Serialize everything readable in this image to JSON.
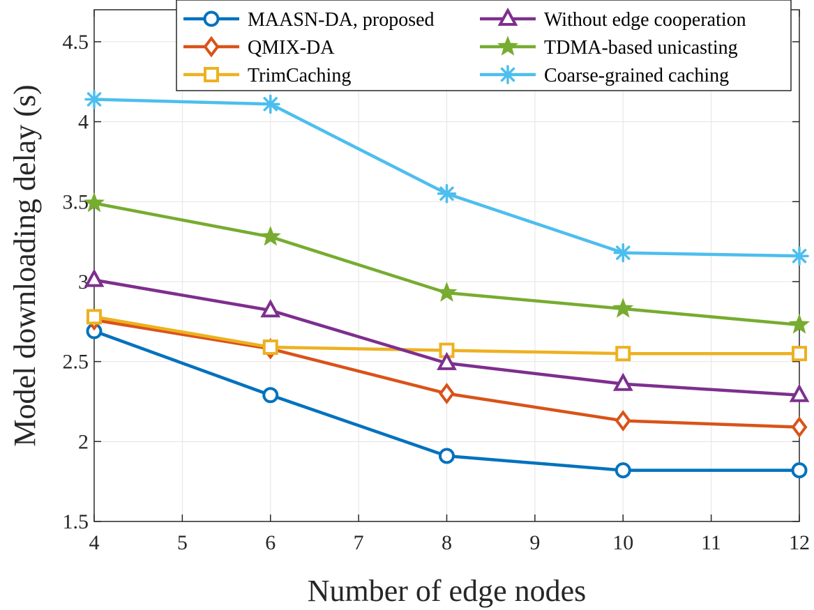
{
  "chart_data": {
    "type": "line",
    "title": "",
    "xlabel": "Number of edge nodes",
    "ylabel": "Model downloading delay (s)",
    "xlim": [
      4,
      12
    ],
    "ylim": [
      1.5,
      4.7
    ],
    "xticks": [
      4,
      5,
      6,
      7,
      8,
      9,
      10,
      11,
      12
    ],
    "yticks": [
      1.5,
      2,
      2.5,
      3,
      3.5,
      4,
      4.5
    ],
    "ytick_labels": [
      "1.5",
      "2",
      "2.5",
      "3",
      "3.5",
      "4",
      "4.5"
    ],
    "grid": true,
    "legend_position": "top-right",
    "x": [
      4,
      6,
      8,
      10,
      12
    ],
    "series": [
      {
        "name": "MAASN-DA, proposed",
        "values": [
          2.69,
          2.29,
          1.91,
          1.82,
          1.82
        ],
        "color": "#0072BD",
        "marker": "circle"
      },
      {
        "name": "QMIX-DA",
        "values": [
          2.76,
          2.58,
          2.3,
          2.13,
          2.09
        ],
        "color": "#D95319",
        "marker": "diamond"
      },
      {
        "name": "TrimCaching",
        "values": [
          2.78,
          2.59,
          2.57,
          2.55,
          2.55
        ],
        "color": "#EDB120",
        "marker": "square"
      },
      {
        "name": "Without edge cooperation",
        "values": [
          3.01,
          2.82,
          2.49,
          2.36,
          2.29
        ],
        "color": "#7E2F8E",
        "marker": "triangle"
      },
      {
        "name": "TDMA-based unicasting",
        "values": [
          3.49,
          3.28,
          2.93,
          2.83,
          2.73
        ],
        "color": "#77AC30",
        "marker": "star"
      },
      {
        "name": "Coarse-grained caching",
        "values": [
          4.14,
          4.11,
          3.55,
          3.18,
          3.16
        ],
        "color": "#4DBEEE",
        "marker": "asterisk"
      }
    ]
  }
}
